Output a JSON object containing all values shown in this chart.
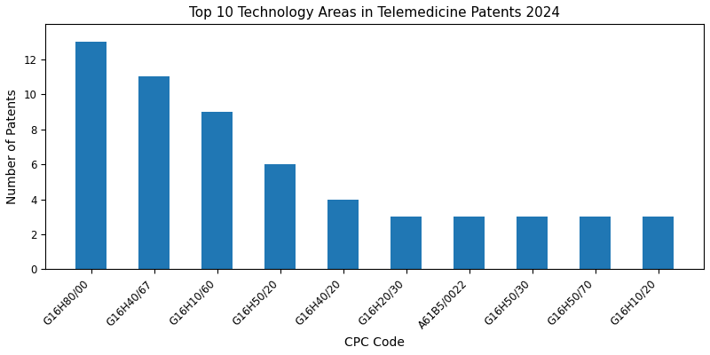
{
  "title": "Top 10 Technology Areas in Telemedicine Patents 2024",
  "xlabel": "CPC Code",
  "ylabel": "Number of Patents",
  "categories": [
    "G16H80/00",
    "G16H40/67",
    "G16H10/60",
    "G16H50/20",
    "G16H40/20",
    "G16H20/30",
    "A61B5/0022",
    "G16H50/30",
    "G16H50/70",
    "G16H10/20"
  ],
  "values": [
    13,
    11,
    9,
    6,
    4,
    3,
    3,
    3,
    3,
    3
  ],
  "bar_color": "#2077b4",
  "ylim": [
    0,
    14
  ],
  "yticks": [
    0,
    2,
    4,
    6,
    8,
    10,
    12
  ],
  "title_fontsize": 11,
  "label_fontsize": 10,
  "tick_fontsize": 8.5,
  "bar_width": 0.5,
  "figsize": [
    8.0,
    4.0
  ],
  "dpi": 100
}
